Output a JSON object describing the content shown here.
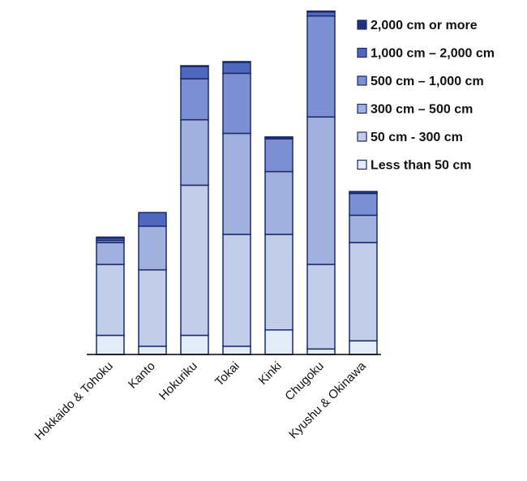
{
  "chart_data": {
    "type": "bar",
    "stacked": true,
    "categories": [
      "Hokkaido & Tohoku",
      "Kanto",
      "Hokuriku",
      "Tokai",
      "Kinki",
      "Chugoku",
      "Kyushu & Okinawa"
    ],
    "series": [
      {
        "name": "Less than 50 cm",
        "color": "#e3ebf8",
        "values": [
          7,
          3,
          7,
          3,
          9,
          2,
          5
        ]
      },
      {
        "name": "50 cm - 300 cm",
        "color": "#c2cdea",
        "values": [
          26,
          28,
          55,
          41,
          35,
          31,
          36
        ]
      },
      {
        "name": "300 cm – 500 cm",
        "color": "#a2b0de",
        "values": [
          8,
          16,
          24,
          37,
          23,
          54,
          10
        ]
      },
      {
        "name": "500 cm – 1,000 cm",
        "color": "#7b8fd2",
        "values": [
          0.8,
          0,
          15,
          22,
          12,
          37,
          8
        ]
      },
      {
        "name": "1,000 cm – 2,000 cm",
        "color": "#4f67bd",
        "values": [
          0.8,
          5,
          4.5,
          4,
          0.5,
          1.5,
          0.5
        ]
      },
      {
        "name": "2,000 cm or more",
        "color": "#1f2f78",
        "values": [
          0.4,
          0,
          0.3,
          0.3,
          0.2,
          0.3,
          0.2
        ]
      }
    ],
    "legend_position": "top-right",
    "grid": false,
    "ylim": [
      0,
      126
    ]
  }
}
